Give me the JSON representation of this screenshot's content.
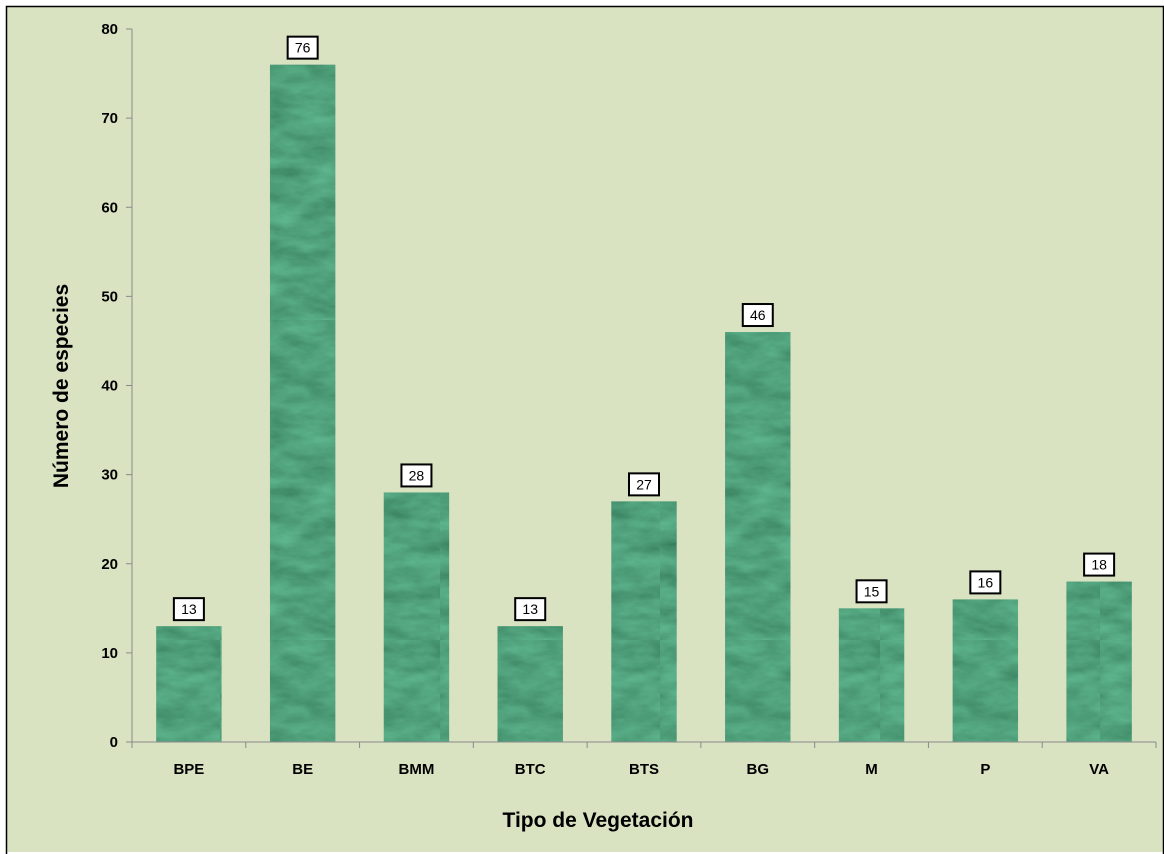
{
  "colors": {
    "plot_background": "#d9e2c1",
    "page_background": "#ffffff",
    "frame": "#000000",
    "bar_fill_dark": "#0f3a1f",
    "bar_fill_mid": "#1f5a35",
    "bar_fill_light": "#3f7d56",
    "axis_line": "#8a8a8a",
    "label_box_fill": "#ffffff",
    "label_box_stroke": "#000000"
  },
  "chart_data": {
    "type": "bar",
    "categories": [
      "BPE",
      "BE",
      "BMM",
      "BTC",
      "BTS",
      "BG",
      "M",
      "P",
      "VA"
    ],
    "values": [
      13,
      76,
      28,
      13,
      27,
      46,
      15,
      16,
      18
    ],
    "data_labels": [
      "13",
      "76",
      "28",
      "13",
      "27",
      "46",
      "15",
      "16",
      "18"
    ],
    "xlabel": "Tipo de Vegetación",
    "ylabel": "Número de especies",
    "ylim": [
      0,
      80
    ],
    "yticks": [
      0,
      10,
      20,
      30,
      40,
      50,
      60,
      70,
      80
    ],
    "ytick_labels": [
      "0",
      "10",
      "20",
      "30",
      "40",
      "50",
      "60",
      "70",
      "80"
    ],
    "grid": false,
    "legend": "none",
    "bar_texture": "green-marble"
  }
}
